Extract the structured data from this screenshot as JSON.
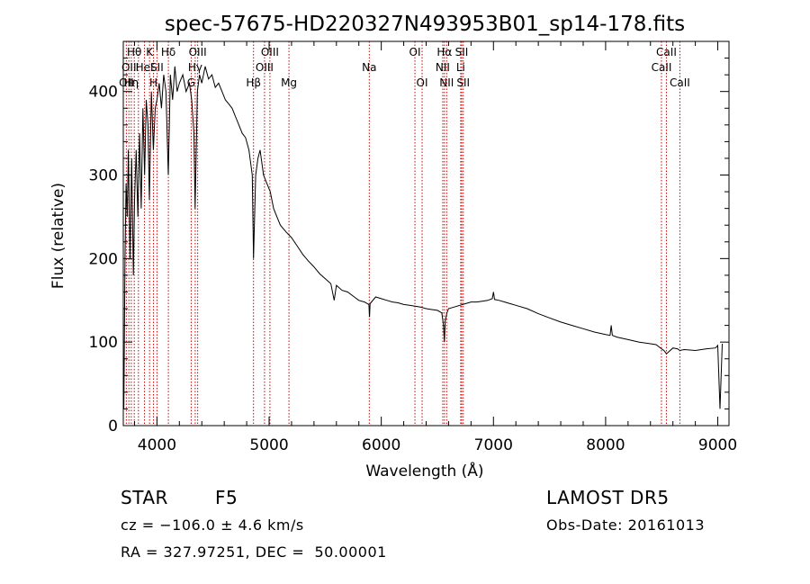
{
  "chart_data": {
    "type": "line",
    "title": "spec-57675-HD220327N493953B01_sp14-178.fits",
    "xlabel": "Wavelength (Å)",
    "ylabel": "Flux (relative)",
    "xlim": [
      3700,
      9100
    ],
    "ylim": [
      0,
      460
    ],
    "xticks": [
      4000,
      5000,
      6000,
      7000,
      8000,
      9000
    ],
    "yticks": [
      0,
      100,
      200,
      300,
      400
    ],
    "grid": false,
    "legend": "none",
    "line_color": "#000000",
    "marker_color": "#cc0000",
    "series": [
      {
        "x": [
          3700,
          3705,
          3715,
          3725,
          3735,
          3745,
          3760,
          3775,
          3790,
          3800,
          3815,
          3830,
          3845,
          3860,
          3875,
          3890,
          3905,
          3920,
          3933,
          3950,
          3968,
          3985,
          4000,
          4020,
          4040,
          4060,
          4080,
          4101,
          4120,
          4140,
          4160,
          4180,
          4200,
          4230,
          4260,
          4290,
          4310,
          4330,
          4340,
          4360,
          4380,
          4400,
          4430,
          4460,
          4490,
          4520,
          4550,
          4580,
          4610,
          4640,
          4670,
          4700,
          4730,
          4760,
          4790,
          4820,
          4850,
          4861,
          4880,
          4900,
          4920,
          4950,
          4980,
          5010,
          5040,
          5070,
          5100,
          5150,
          5200,
          5250,
          5300,
          5350,
          5400,
          5450,
          5500,
          5550,
          5580,
          5600,
          5650,
          5700,
          5750,
          5800,
          5850,
          5890,
          5895,
          5900,
          5950,
          6000,
          6050,
          6100,
          6150,
          6200,
          6250,
          6300,
          6350,
          6400,
          6450,
          6500,
          6540,
          6555,
          6563,
          6570,
          6585,
          6600,
          6650,
          6700,
          6750,
          6800,
          6850,
          6900,
          6950,
          6990,
          7000,
          7010,
          7050,
          7100,
          7150,
          7200,
          7300,
          7400,
          7500,
          7600,
          7700,
          7800,
          7900,
          8000,
          8040,
          8050,
          8060,
          8100,
          8200,
          8300,
          8400,
          8450,
          8498,
          8520,
          8542,
          8560,
          8600,
          8640,
          8662,
          8700,
          8800,
          8900,
          8980,
          9000,
          9020,
          9040
        ],
        "y": [
          45,
          20,
          200,
          290,
          250,
          330,
          200,
          320,
          180,
          270,
          330,
          250,
          350,
          260,
          380,
          300,
          390,
          360,
          270,
          400,
          330,
          380,
          390,
          410,
          380,
          420,
          400,
          300,
          420,
          390,
          430,
          400,
          410,
          420,
          400,
          410,
          390,
          350,
          260,
          400,
          420,
          410,
          430,
          415,
          420,
          405,
          410,
          400,
          390,
          385,
          380,
          370,
          360,
          350,
          345,
          330,
          300,
          200,
          300,
          320,
          330,
          300,
          290,
          280,
          260,
          250,
          240,
          232,
          225,
          215,
          205,
          197,
          190,
          182,
          176,
          170,
          150,
          168,
          162,
          160,
          155,
          150,
          148,
          145,
          130,
          146,
          154,
          152,
          150,
          148,
          147,
          145,
          144,
          143,
          142,
          140,
          139,
          138,
          135,
          120,
          100,
          125,
          135,
          140,
          142,
          144,
          146,
          148,
          148,
          149,
          150,
          152,
          160,
          151,
          150,
          148,
          146,
          144,
          140,
          134,
          129,
          124,
          120,
          116,
          112,
          109,
          108,
          120,
          108,
          106,
          103,
          100,
          98,
          97,
          92,
          90,
          86,
          88,
          93,
          92,
          90,
          91,
          90,
          92,
          93,
          96,
          20,
          98
        ]
      }
    ],
    "line_markers": [
      {
        "x": 3727,
        "label": "OII",
        "row": 2
      },
      {
        "x": 3750,
        "label": "OII",
        "row": 1
      },
      {
        "x": 3771,
        "label": "Hη",
        "row": 2
      },
      {
        "x": 3798,
        "label": "Hθ",
        "row": 0
      },
      {
        "x": 3835,
        "label": "",
        "row": 0
      },
      {
        "x": 3889,
        "label": "HeI",
        "row": 1
      },
      {
        "x": 3934,
        "label": "K",
        "row": 0
      },
      {
        "x": 3969,
        "label": "H",
        "row": 2
      },
      {
        "x": 4000,
        "label": "SII",
        "row": 1
      },
      {
        "x": 4102,
        "label": "Hδ",
        "row": 0
      },
      {
        "x": 4305,
        "label": "G",
        "row": 2
      },
      {
        "x": 4341,
        "label": "Hγ",
        "row": 1
      },
      {
        "x": 4363,
        "label": "OIII",
        "row": 0
      },
      {
        "x": 4861,
        "label": "Hβ",
        "row": 2
      },
      {
        "x": 4959,
        "label": "OIII",
        "row": 1
      },
      {
        "x": 5007,
        "label": "OIII",
        "row": 0
      },
      {
        "x": 5177,
        "label": "Mg",
        "row": 2
      },
      {
        "x": 5893,
        "label": "Na",
        "row": 1
      },
      {
        "x": 6300,
        "label": "OI",
        "row": 0
      },
      {
        "x": 6364,
        "label": "OI",
        "row": 2
      },
      {
        "x": 6548,
        "label": "NII",
        "row": 1
      },
      {
        "x": 6563,
        "label": "Hα",
        "row": 0
      },
      {
        "x": 6583,
        "label": "NII",
        "row": 2
      },
      {
        "x": 6708,
        "label": "Li",
        "row": 1
      },
      {
        "x": 6717,
        "label": "SII",
        "row": 0
      },
      {
        "x": 6731,
        "label": "SII",
        "row": 2
      },
      {
        "x": 8498,
        "label": "CaII",
        "row": 1
      },
      {
        "x": 8542,
        "label": "CaII",
        "row": 0
      },
      {
        "x": 8662,
        "label": "CaII",
        "row": 2
      }
    ]
  },
  "info": {
    "object_class": "STAR",
    "subclass": "F5",
    "survey": "LAMOST DR5",
    "cz": "cz = −106.0 ± 4.6 km/s",
    "obs_date": "Obs-Date: 20161013",
    "coords": "RA = 327.97251, DEC =  50.00001"
  }
}
